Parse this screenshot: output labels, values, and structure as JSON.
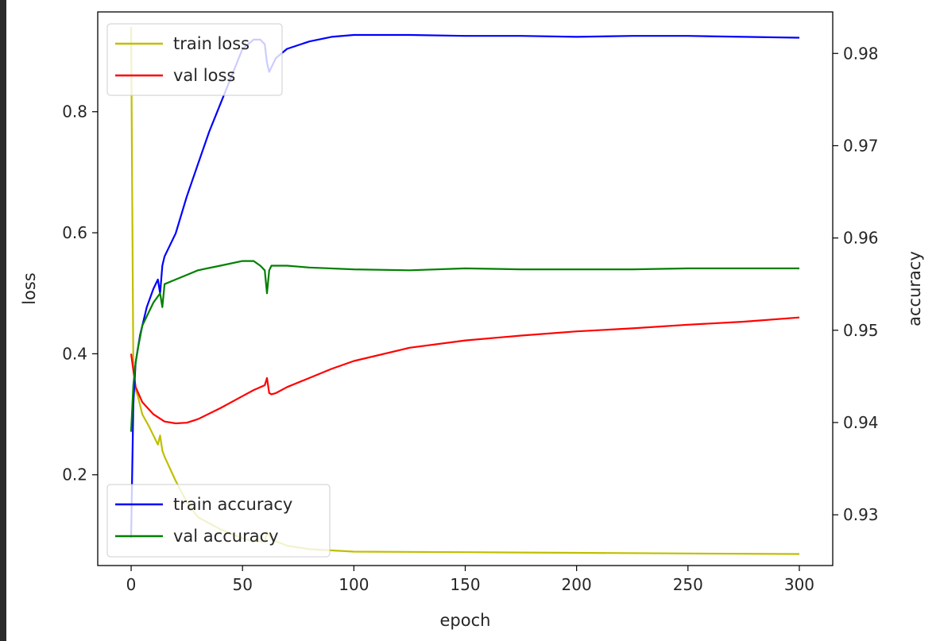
{
  "chart_data": {
    "type": "line",
    "title": "",
    "xlabel": "epoch",
    "ylabel_left": "loss",
    "ylabel_right": "accuracy",
    "xlim": [
      -15,
      315
    ],
    "ylim_left": [
      0.05,
      0.965
    ],
    "ylim_right": [
      0.9245,
      0.9845
    ],
    "xticks": [
      0,
      50,
      100,
      150,
      200,
      250,
      300
    ],
    "xtick_labels": [
      "0",
      "50",
      "100",
      "150",
      "200",
      "250",
      "300"
    ],
    "yticks_left": [
      0.2,
      0.4,
      0.6,
      0.8
    ],
    "ytick_labels_left": [
      "0.2",
      "0.4",
      "0.6",
      "0.8"
    ],
    "yticks_right": [
      0.93,
      0.94,
      0.95,
      0.96,
      0.97,
      0.98
    ],
    "ytick_labels_right": [
      "0.93",
      "0.94",
      "0.95",
      "0.96",
      "0.97",
      "0.98"
    ],
    "grid": false,
    "legend_loss": {
      "location": "upper-left",
      "entries": [
        "train loss",
        "val loss"
      ]
    },
    "legend_accuracy": {
      "location": "lower-left",
      "entries": [
        "train accuracy",
        "val accuracy"
      ]
    },
    "series": [
      {
        "name": "train loss",
        "axis": "left",
        "color": "#bfbf00",
        "x": [
          0,
          1,
          2,
          3,
          5,
          8,
          10,
          12,
          13,
          14,
          15,
          20,
          25,
          30,
          40,
          50,
          55,
          60,
          61,
          62,
          63,
          65,
          70,
          80,
          100,
          150,
          200,
          250,
          300
        ],
        "y": [
          0.94,
          0.38,
          0.34,
          0.33,
          0.3,
          0.28,
          0.265,
          0.25,
          0.265,
          0.24,
          0.23,
          0.19,
          0.155,
          0.13,
          0.11,
          0.095,
          0.09,
          0.09,
          0.105,
          0.1,
          0.095,
          0.09,
          0.083,
          0.077,
          0.073,
          0.072,
          0.071,
          0.07,
          0.069
        ]
      },
      {
        "name": "val loss",
        "axis": "left",
        "color": "#ff0000",
        "x": [
          0,
          2,
          5,
          10,
          15,
          20,
          25,
          30,
          40,
          50,
          55,
          60,
          61,
          62,
          63,
          65,
          70,
          80,
          90,
          100,
          125,
          150,
          175,
          200,
          225,
          250,
          275,
          300
        ],
        "y": [
          0.4,
          0.345,
          0.32,
          0.3,
          0.288,
          0.285,
          0.286,
          0.292,
          0.31,
          0.33,
          0.34,
          0.348,
          0.36,
          0.335,
          0.333,
          0.335,
          0.345,
          0.36,
          0.375,
          0.388,
          0.41,
          0.422,
          0.43,
          0.437,
          0.442,
          0.448,
          0.453,
          0.46
        ]
      },
      {
        "name": "train accuracy",
        "axis": "right",
        "color": "#0000ff",
        "x": [
          0,
          1,
          2,
          4,
          7,
          10,
          12,
          13,
          14,
          15,
          20,
          25,
          30,
          35,
          40,
          45,
          50,
          55,
          58,
          60,
          61,
          62,
          63,
          65,
          70,
          80,
          90,
          100,
          125,
          150,
          175,
          200,
          225,
          250,
          275,
          300
        ],
        "y": [
          0.9275,
          0.942,
          0.9465,
          0.9495,
          0.9525,
          0.9545,
          0.9555,
          0.954,
          0.957,
          0.958,
          0.9605,
          0.9645,
          0.968,
          0.9715,
          0.9745,
          0.9775,
          0.9805,
          0.9815,
          0.9815,
          0.981,
          0.979,
          0.978,
          0.9785,
          0.9795,
          0.9805,
          0.9813,
          0.9818,
          0.982,
          0.982,
          0.9819,
          0.9819,
          0.9818,
          0.9819,
          0.9819,
          0.9818,
          0.9817
        ]
      },
      {
        "name": "val accuracy",
        "axis": "right",
        "color": "#008000",
        "x": [
          0,
          1,
          2,
          3,
          5,
          8,
          10,
          13,
          14,
          15,
          20,
          25,
          30,
          40,
          50,
          55,
          58,
          60,
          61,
          62,
          63,
          65,
          70,
          80,
          100,
          125,
          150,
          175,
          200,
          225,
          250,
          275,
          300
        ],
        "y": [
          0.939,
          0.944,
          0.9465,
          0.948,
          0.9505,
          0.952,
          0.953,
          0.954,
          0.9525,
          0.955,
          0.9555,
          0.956,
          0.9565,
          0.957,
          0.9575,
          0.9575,
          0.957,
          0.9565,
          0.954,
          0.9565,
          0.957,
          0.957,
          0.957,
          0.9568,
          0.9566,
          0.9565,
          0.9567,
          0.9566,
          0.9566,
          0.9566,
          0.9567,
          0.9567,
          0.9567
        ]
      }
    ]
  }
}
